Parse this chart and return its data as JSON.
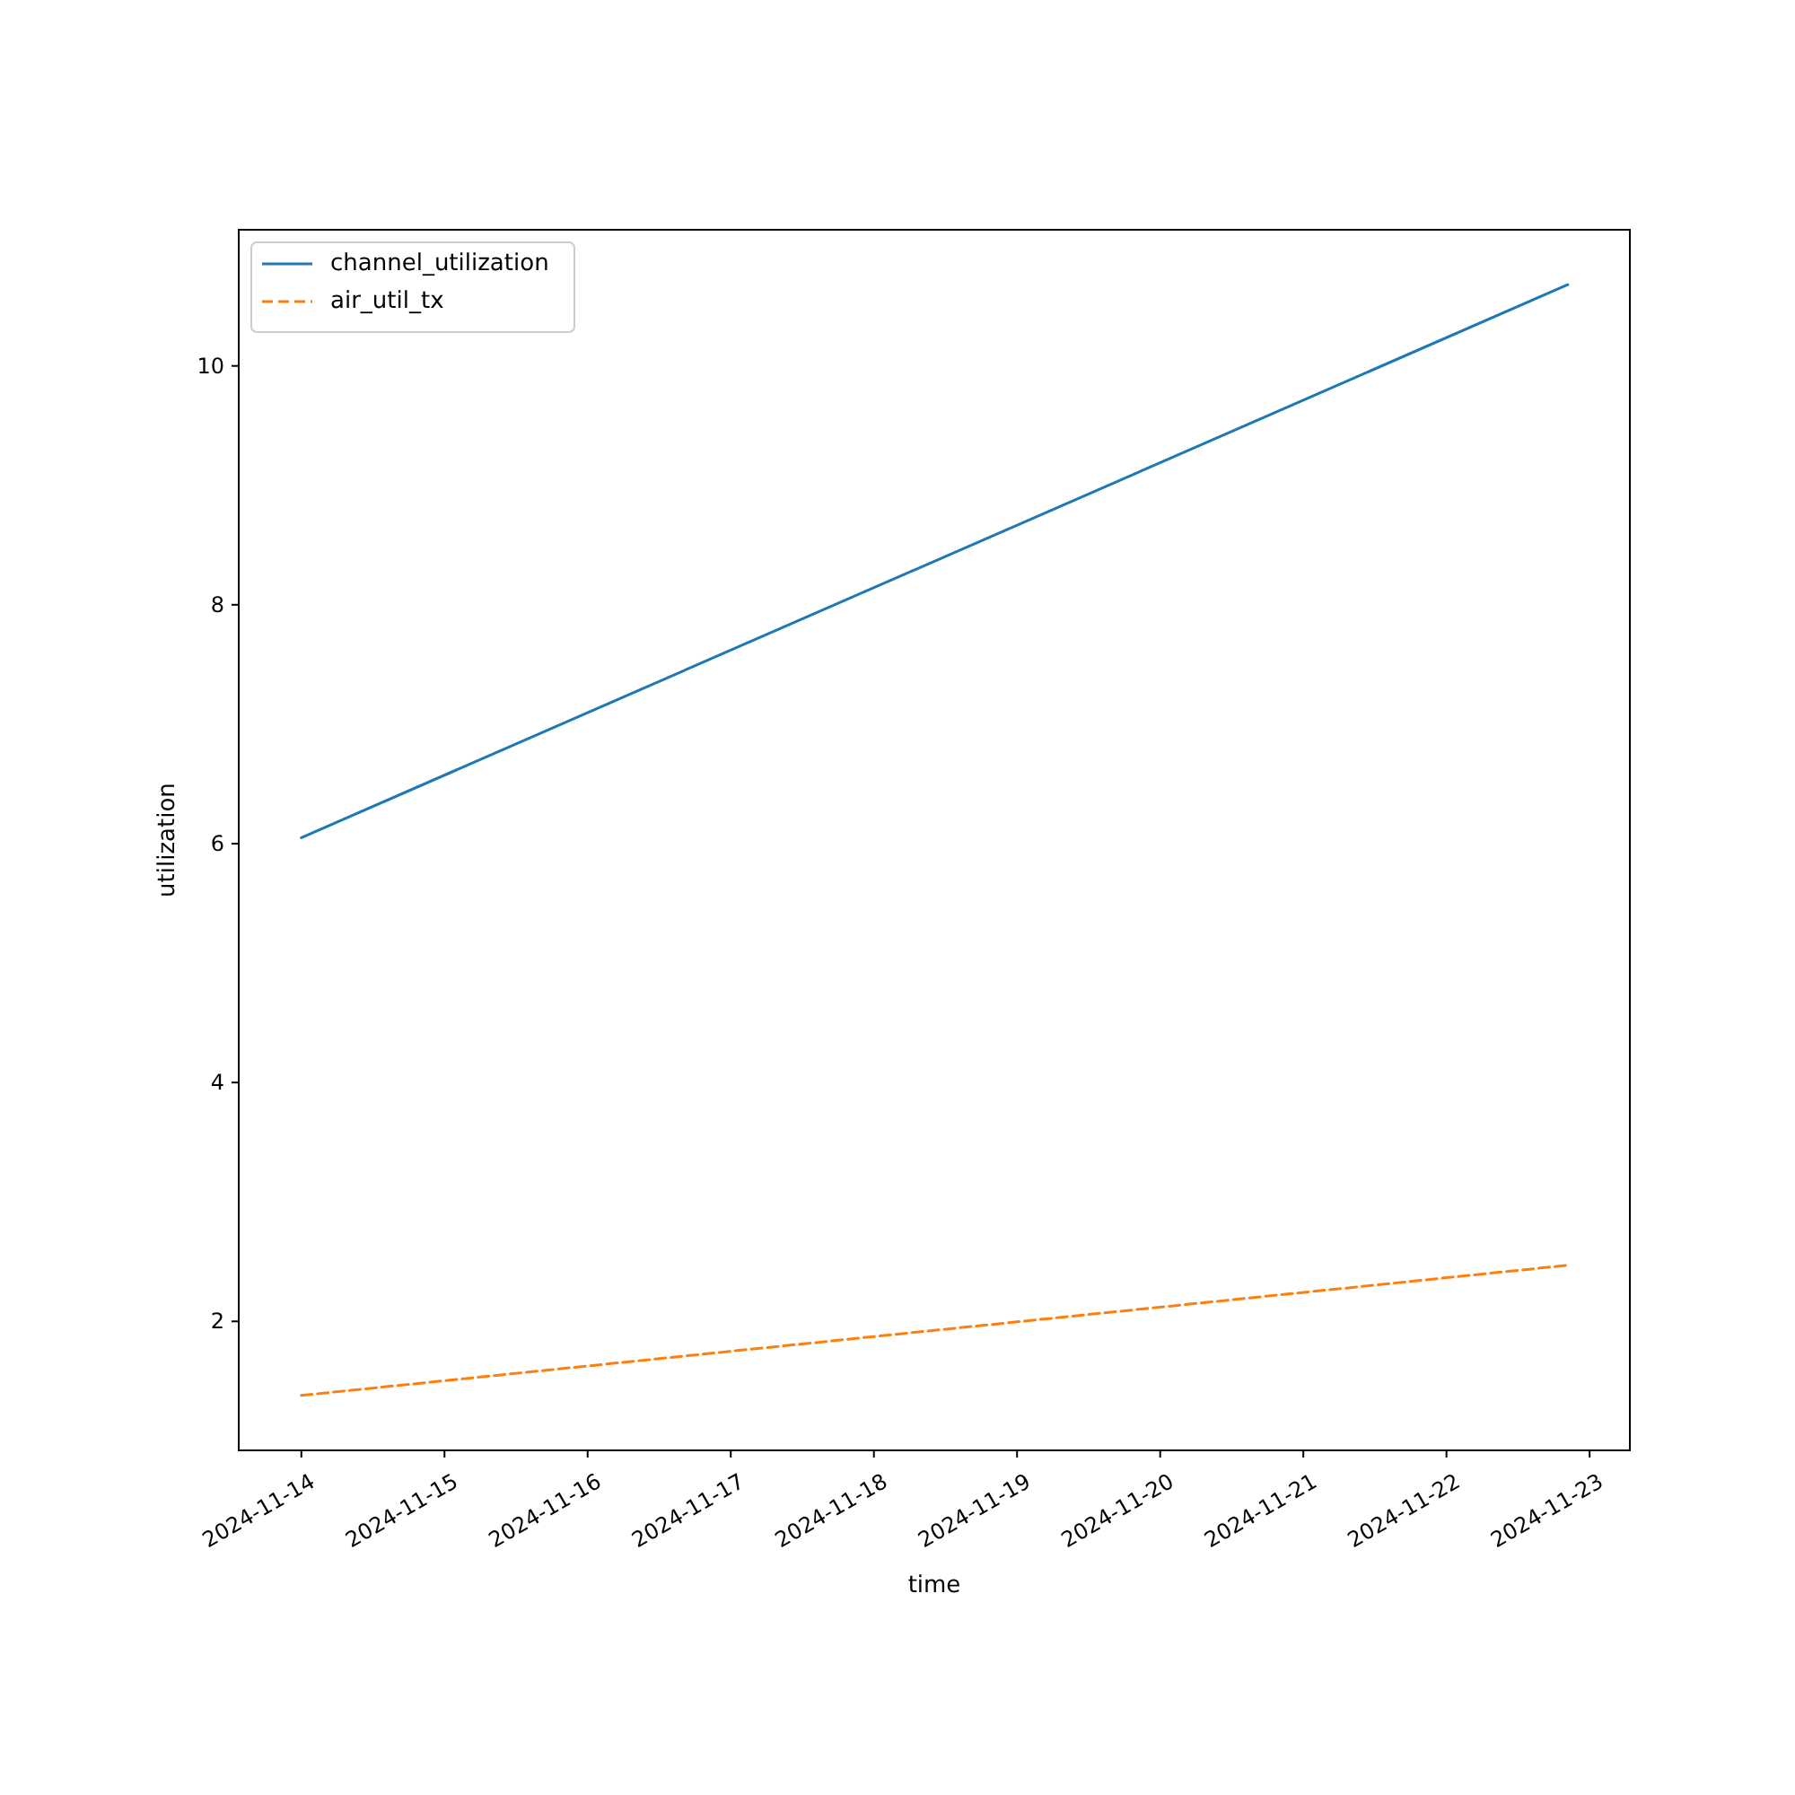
{
  "chart_data": {
    "type": "line",
    "xlabel": "time",
    "ylabel": "utilization",
    "x": [
      "2024-11-14T00:00",
      "2024-11-22T20:20"
    ],
    "series": [
      {
        "name": "channel_utilization",
        "color": "#1f77b4",
        "values": [
          6.05,
          10.68
        ],
        "line_style": "solid"
      },
      {
        "name": "air_util_tx",
        "color": "#ff7f0e",
        "values": [
          1.38,
          2.47
        ],
        "line_style": "dashed"
      }
    ],
    "xlim": [
      "2024-11-13T13:30",
      "2024-11-23T06:45"
    ],
    "xticks": [
      "2024-11-14",
      "2024-11-15",
      "2024-11-16",
      "2024-11-17",
      "2024-11-18",
      "2024-11-19",
      "2024-11-20",
      "2024-11-21",
      "2024-11-22",
      "2024-11-23"
    ],
    "ylim": [
      0.92,
      11.14
    ],
    "yticks": [
      2,
      4,
      6,
      8,
      10
    ],
    "grid": false,
    "legend": "top left",
    "marker": "none"
  }
}
